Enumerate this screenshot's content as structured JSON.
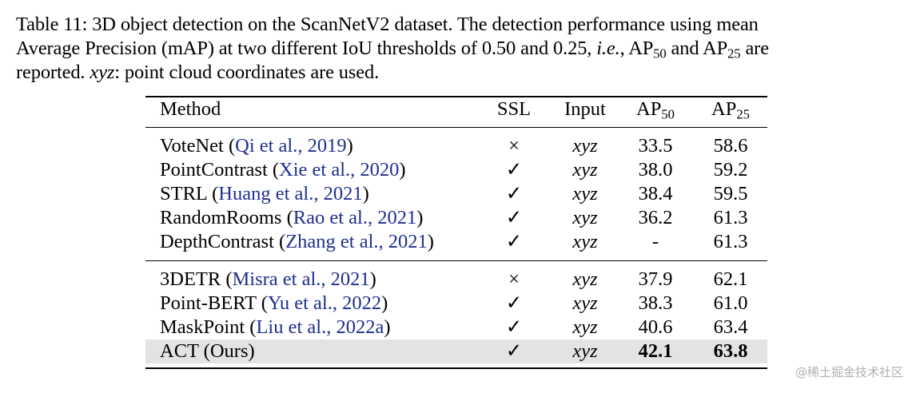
{
  "caption": {
    "l1": "Table 11: 3D object detection on the ScanNetV2 dataset. The detection performance using mean",
    "l2a": "Average Precision (mAP) at two different IoU thresholds of ",
    "l2_t1": "0.50",
    "l2b": " and ",
    "l2_t2": "0.25",
    "l2c": ", ",
    "l2_ie": "i.e.",
    "l2d": ", AP",
    "l2_sub1": "50",
    "l2e": " and AP",
    "l2_sub2": "25",
    "l2f": " are",
    "l3a": "reported. ",
    "l3_xyz": "xyz",
    "l3b": ": point cloud coordinates are used."
  },
  "table": {
    "headers": {
      "method": "Method",
      "ssl": "SSL",
      "input": "Input",
      "ap50_base": "AP",
      "ap50_sub": "50",
      "ap25_base": "AP",
      "ap25_sub": "25"
    },
    "rows": [
      {
        "method": "VoteNet (",
        "cite": "Qi et al., 2019",
        "close": ")",
        "ssl": "×",
        "input": "xyz",
        "ap50": "33.5",
        "ap25": "58.6"
      },
      {
        "method": "PointContrast (",
        "cite": "Xie et al., 2020",
        "close": ")",
        "ssl": "✓",
        "input": "xyz",
        "ap50": "38.0",
        "ap25": "59.2"
      },
      {
        "method": "STRL (",
        "cite": "Huang et al., 2021",
        "close": ")",
        "ssl": "✓",
        "input": "xyz",
        "ap50": "38.4",
        "ap25": "59.5"
      },
      {
        "method": "RandomRooms (",
        "cite": "Rao et al., 2021",
        "close": ")",
        "ssl": "✓",
        "input": "xyz",
        "ap50": "36.2",
        "ap25": "61.3"
      },
      {
        "method": "DepthContrast (",
        "cite": "Zhang et al., 2021",
        "close": ")",
        "ssl": "✓",
        "input": "xyz",
        "ap50": "-",
        "ap25": "61.3"
      },
      {
        "method": "3DETR (",
        "cite": "Misra et al., 2021",
        "close": ")",
        "ssl": "×",
        "input": "xyz",
        "ap50": "37.9",
        "ap25": "62.1"
      },
      {
        "method": "Point-BERT (",
        "cite": "Yu et al., 2022",
        "close": ")",
        "ssl": "✓",
        "input": "xyz",
        "ap50": "38.3",
        "ap25": "61.0"
      },
      {
        "method": "MaskPoint (",
        "cite": "Liu et al., 2022a",
        "close": ")",
        "ssl": "✓",
        "input": "xyz",
        "ap50": "40.6",
        "ap25": "63.4"
      },
      {
        "method": "ACT (Ours)",
        "cite": "",
        "close": "",
        "ssl": "✓",
        "input": "xyz",
        "ap50": "42.1",
        "ap25": "63.8"
      }
    ]
  },
  "watermark": "@稀土掘金技术社区"
}
